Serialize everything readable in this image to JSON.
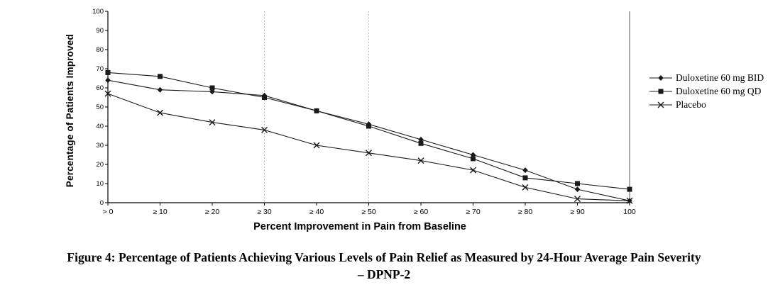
{
  "chart_data": {
    "type": "line",
    "title": "",
    "xlabel": "Percent Improvement in Pain from Baseline",
    "ylabel": "Percentage of Patients Improved",
    "ylim": [
      0,
      100
    ],
    "yticks": [
      0,
      10,
      20,
      30,
      40,
      50,
      60,
      70,
      80,
      90,
      100
    ],
    "categories": [
      "> 0",
      "≥ 10",
      "≥ 20",
      "≥ 30",
      "≥ 40",
      "≥ 50",
      "≥ 60",
      "≥ 70",
      "≥ 80",
      "≥ 90",
      "100"
    ],
    "series": [
      {
        "name": "Duloxetine 60 mg BID",
        "marker": "diamond",
        "values": [
          64,
          59,
          58,
          56,
          48,
          41,
          33,
          25,
          17,
          7,
          1
        ]
      },
      {
        "name": "Duloxetine 60 mg QD",
        "marker": "square",
        "values": [
          68,
          66,
          60,
          55,
          48,
          40,
          31,
          23,
          13,
          10,
          7
        ]
      },
      {
        "name": "Placebo",
        "marker": "x",
        "values": [
          57,
          47,
          42,
          38,
          30,
          26,
          22,
          17,
          8,
          2,
          1
        ]
      }
    ],
    "grid_vlines_at": [
      "≥ 30",
      "≥ 50"
    ],
    "solid_vline_at": "100",
    "legend_position": "right",
    "grid": "vertical-dotted-only"
  },
  "colors": {
    "series": "#1a1a1a",
    "axis": "#000000",
    "grid": "#a9a9a9",
    "background": "#ffffff"
  },
  "caption": {
    "line1": "Figure 4: Percentage of Patients Achieving Various Levels of Pain Relief as Measured by 24-Hour Average Pain Severity",
    "line2": "– DPNP-2"
  }
}
